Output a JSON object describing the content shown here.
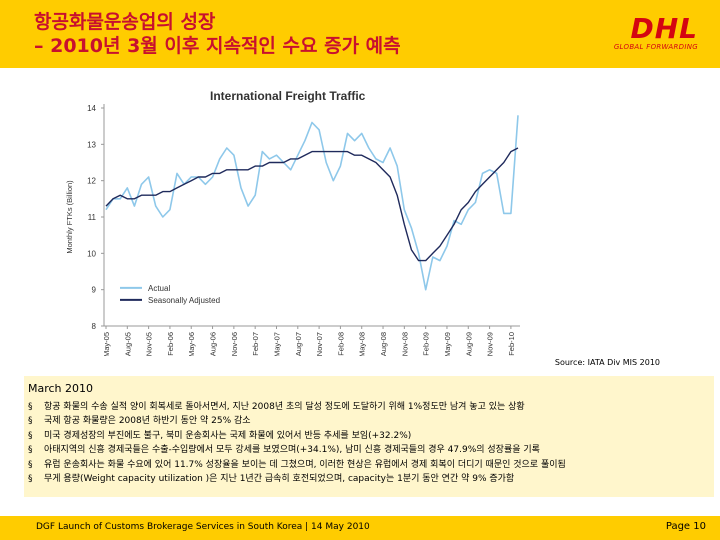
{
  "slide": {
    "title_line1": "항공화물운송업의 성장",
    "title_line2": "– 2010년 3월 이후 지속적인 수요 증가 예측",
    "logo_text": "DHL",
    "logo_subtext": "GLOBAL FORWARDING",
    "source": "Source: IATA Div MIS 2010",
    "info": {
      "heading": "March 2010",
      "bullet_symbol": "§",
      "bullets": [
        "항공 화물의 수송 실적 양이 회복세로 돌아서면서, 지난 2008년 초의 달성 정도에 도달하기 위해 1%정도만 남겨 놓고 있는 상황",
        "국제 항공 화물량은 2008년 하반기 동안 약 25% 감소",
        "미국 경제성장의 부진에도 불구, 북미 운송회사는 국제 화물에 있어서 반등 추세를 보임(+32.2%)",
        "아태지역의 신흥 경제국들은 수출-수입량에서 모두 강세를 보였으며(+34.1%), 남미 신흥 경제국들의 경우 47.9%의 성장률을 기록",
        "유럽 운송회사는 화물 수요에 있어 11.7% 성장율을 보이는 데 그쳤으며, 이러한 현상은 유럽에서 경제 회복이 더디기 때문인 것으로 풀이됨",
        "무게 용량(Weight capacity utilization )은 지난 1년간 급속히 호전되었으며, capacity는 1분기 동안 연간 약 9% 증가함"
      ]
    },
    "footer": "DGF Launch of Customs Brokerage Services in South Korea | 14 May 2010",
    "page": "Page  10"
  },
  "colors": {
    "header_bg": "#ffcc00",
    "title_red": "#c8102e",
    "dhl_red": "#d40511",
    "actual": "#8ec8ea",
    "adjusted": "#1f2a5c",
    "info_bg": "#fff6cc"
  },
  "chart_data": {
    "type": "line",
    "title": "International Freight Traffic",
    "ylabel": "Monthly FTKs (Billion)",
    "ylim": [
      8,
      14
    ],
    "yticks": [
      8,
      9,
      10,
      11,
      12,
      13,
      14
    ],
    "grid": false,
    "legend_position": "bottom-left",
    "x_tick_labels": [
      "May-05",
      "Aug-05",
      "Nov-05",
      "Feb-06",
      "May-06",
      "Aug-06",
      "Nov-06",
      "Feb-07",
      "May-07",
      "Aug-07",
      "Nov-07",
      "Feb-08",
      "May-08",
      "Aug-08",
      "Nov-08",
      "Feb-09",
      "May-09",
      "Aug-09",
      "Nov-09",
      "Feb-10"
    ],
    "x_months": [
      "May-05",
      "Jun-05",
      "Jul-05",
      "Aug-05",
      "Sep-05",
      "Oct-05",
      "Nov-05",
      "Dec-05",
      "Jan-06",
      "Feb-06",
      "Mar-06",
      "Apr-06",
      "May-06",
      "Jun-06",
      "Jul-06",
      "Aug-06",
      "Sep-06",
      "Oct-06",
      "Nov-06",
      "Dec-06",
      "Jan-07",
      "Feb-07",
      "Mar-07",
      "Apr-07",
      "May-07",
      "Jun-07",
      "Jul-07",
      "Aug-07",
      "Sep-07",
      "Oct-07",
      "Nov-07",
      "Dec-07",
      "Jan-08",
      "Feb-08",
      "Mar-08",
      "Apr-08",
      "May-08",
      "Jun-08",
      "Jul-08",
      "Aug-08",
      "Sep-08",
      "Oct-08",
      "Nov-08",
      "Dec-08",
      "Jan-09",
      "Feb-09",
      "Mar-09",
      "Apr-09",
      "May-09",
      "Jun-09",
      "Jul-09",
      "Aug-09",
      "Sep-09",
      "Oct-09",
      "Nov-09",
      "Dec-09",
      "Jan-10",
      "Feb-10",
      "Mar-10"
    ],
    "series": [
      {
        "name": "Actual",
        "values": [
          11.2,
          11.5,
          11.5,
          11.8,
          11.3,
          11.9,
          12.1,
          11.3,
          11.0,
          11.2,
          12.2,
          11.9,
          12.1,
          12.1,
          11.9,
          12.1,
          12.6,
          12.9,
          12.7,
          11.8,
          11.3,
          11.6,
          12.8,
          12.6,
          12.7,
          12.5,
          12.3,
          12.7,
          13.1,
          13.6,
          13.4,
          12.5,
          12.0,
          12.4,
          13.3,
          13.1,
          13.3,
          12.9,
          12.6,
          12.5,
          12.9,
          12.4,
          11.2,
          10.7,
          10.0,
          9.0,
          9.9,
          9.8,
          10.2,
          10.9,
          10.8,
          11.2,
          11.4,
          12.2,
          12.3,
          12.2,
          11.1,
          11.1,
          13.8
        ]
      },
      {
        "name": "Seasonally Adjusted",
        "values": [
          11.3,
          11.5,
          11.6,
          11.5,
          11.5,
          11.6,
          11.6,
          11.6,
          11.7,
          11.7,
          11.8,
          11.9,
          12.0,
          12.1,
          12.1,
          12.2,
          12.2,
          12.3,
          12.3,
          12.3,
          12.3,
          12.4,
          12.4,
          12.5,
          12.5,
          12.5,
          12.6,
          12.6,
          12.7,
          12.8,
          12.8,
          12.8,
          12.8,
          12.8,
          12.8,
          12.7,
          12.7,
          12.6,
          12.5,
          12.3,
          12.1,
          11.6,
          10.8,
          10.1,
          9.8,
          9.8,
          10.0,
          10.2,
          10.5,
          10.8,
          11.2,
          11.4,
          11.7,
          11.9,
          12.1,
          12.3,
          12.5,
          12.8,
          12.9
        ]
      }
    ]
  }
}
